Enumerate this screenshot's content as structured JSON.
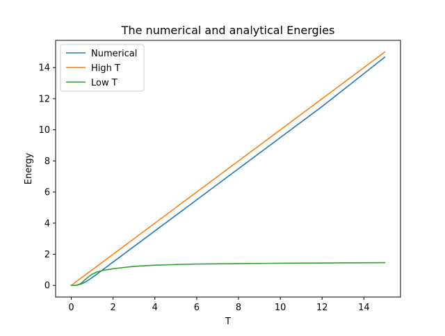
{
  "chart_data": {
    "type": "line",
    "title": "The numerical and analytical Energies",
    "xlabel": "T",
    "ylabel": "Energy",
    "xlim": [
      -0.75,
      15.75
    ],
    "ylim": [
      -0.75,
      15.75
    ],
    "xticks": [
      0,
      2,
      4,
      6,
      8,
      10,
      12,
      14
    ],
    "xtick_labels": [
      "0",
      "2",
      "4",
      "6",
      "8",
      "10",
      "12",
      "14"
    ],
    "yticks": [
      0,
      2,
      4,
      6,
      8,
      10,
      12,
      14
    ],
    "ytick_labels": [
      "0",
      "2",
      "4",
      "6",
      "8",
      "10",
      "12",
      "14"
    ],
    "grid": false,
    "legend_position": "top-left",
    "series": [
      {
        "name": "Numerical",
        "color": "#1f77b4",
        "x": [
          0,
          0.25,
          0.5,
          0.75,
          1.0,
          1.25,
          1.5,
          2,
          3,
          4,
          6,
          8,
          10,
          12,
          15
        ],
        "y": [
          0,
          0.01,
          0.1,
          0.28,
          0.5,
          0.75,
          1.0,
          1.5,
          2.5,
          3.5,
          5.5,
          7.5,
          9.5,
          11.5,
          14.67
        ]
      },
      {
        "name": "High T",
        "color": "#ff7f0e",
        "x": [
          0,
          15
        ],
        "y": [
          0,
          15
        ]
      },
      {
        "name": "Low T",
        "color": "#2ca02c",
        "x": [
          0,
          0.25,
          0.4,
          0.5,
          0.6,
          0.75,
          0.9,
          1.0,
          1.25,
          1.5,
          2,
          2.5,
          3,
          4,
          5,
          6,
          8,
          10,
          12,
          15
        ],
        "y": [
          0,
          0.01,
          0.08,
          0.17,
          0.3,
          0.47,
          0.63,
          0.72,
          0.87,
          0.96,
          1.07,
          1.15,
          1.22,
          1.3,
          1.34,
          1.37,
          1.4,
          1.42,
          1.44,
          1.46
        ]
      }
    ]
  }
}
